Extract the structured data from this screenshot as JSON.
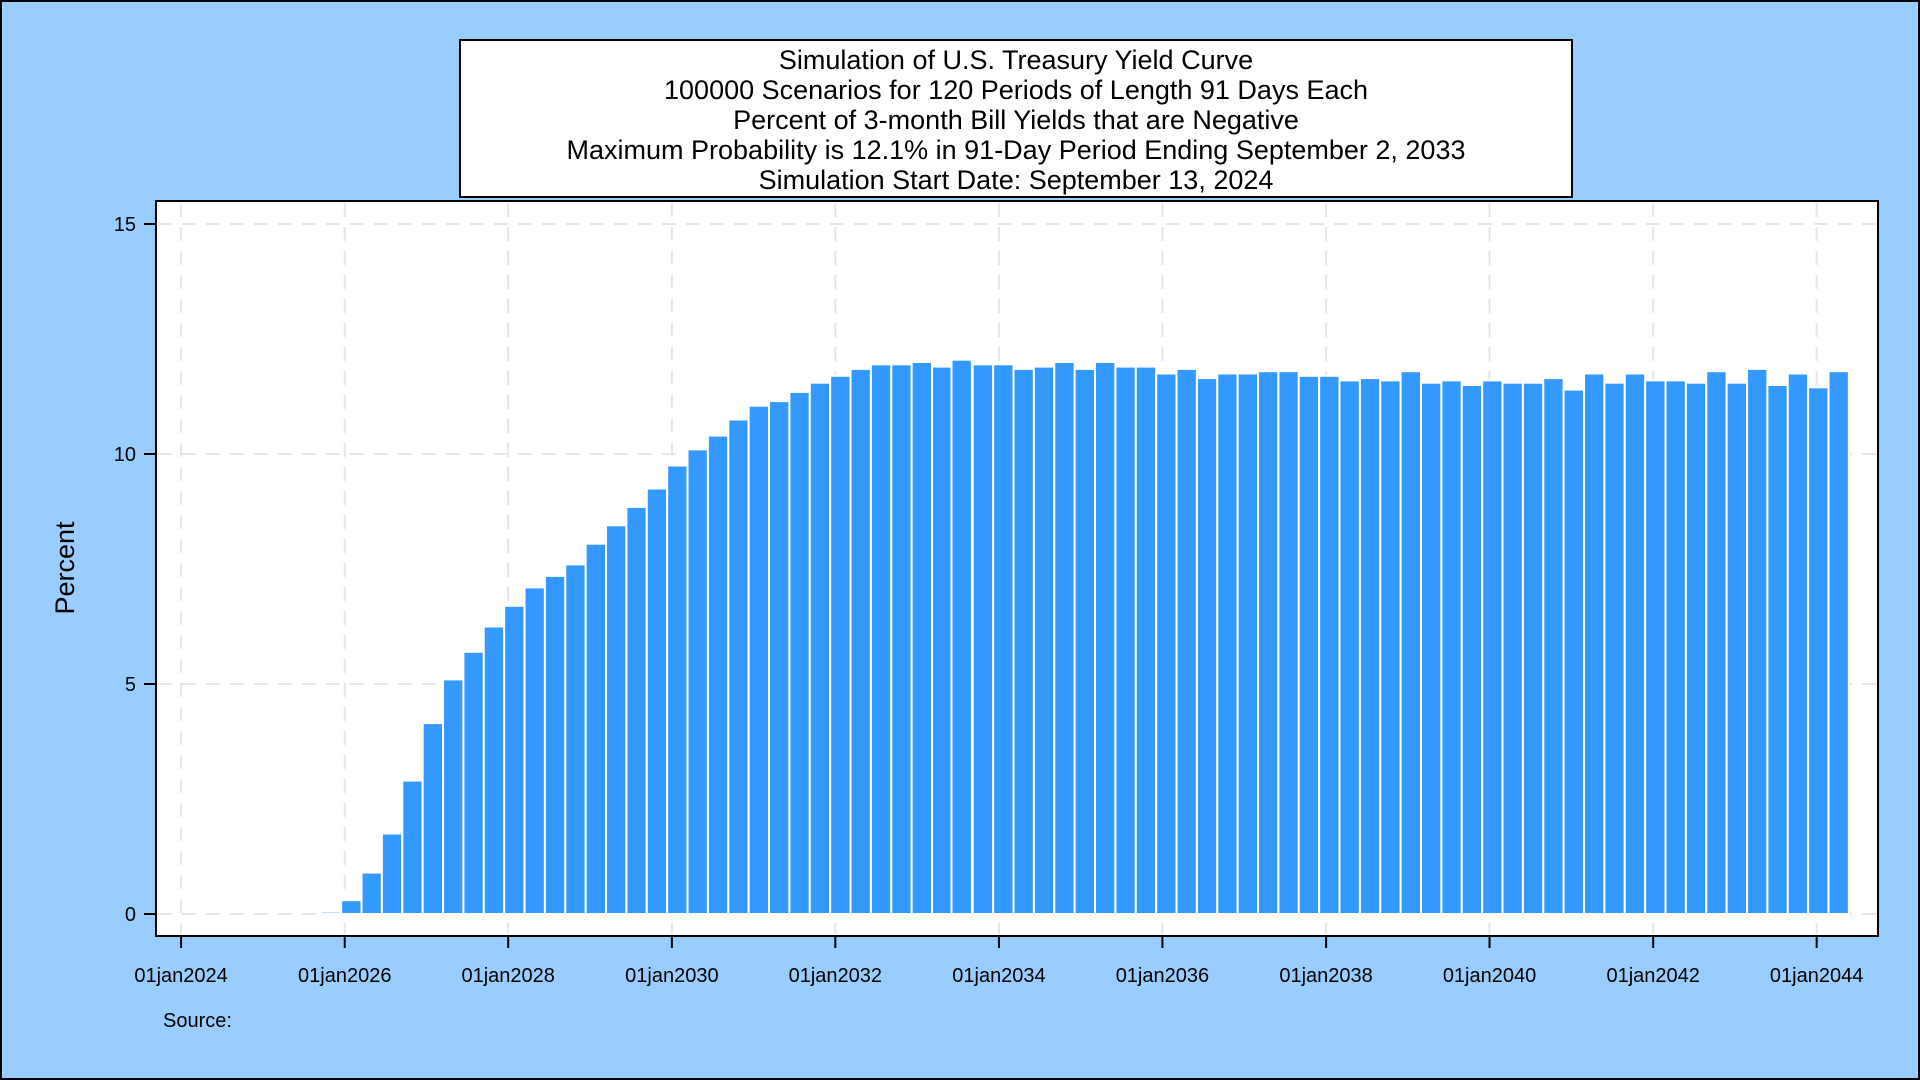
{
  "chart_data": {
    "type": "bar",
    "title_lines": [
      "Simulation of U.S. Treasury Yield Curve",
      "100000 Scenarios for 120 Periods of Length 91 Days Each",
      "Percent of 3-month Bill Yields that are Negative",
      "Maximum Probability is 12.1% in 91-Day Period Ending September 2, 2033",
      "Simulation Start Date: September 13, 2024"
    ],
    "ylabel": "Percent",
    "xlabel": "",
    "ylim": [
      0,
      15
    ],
    "yticks": [
      0,
      5,
      10,
      15
    ],
    "x_axis_range": [
      "2023-09-11",
      "2044-10-01"
    ],
    "xticks": [
      {
        "date": "2024-01-01",
        "label": "01jan2024"
      },
      {
        "date": "2026-01-01",
        "label": "01jan2026"
      },
      {
        "date": "2028-01-01",
        "label": "01jan2028"
      },
      {
        "date": "2030-01-01",
        "label": "01jan2030"
      },
      {
        "date": "2032-01-01",
        "label": "01jan2032"
      },
      {
        "date": "2034-01-01",
        "label": "01jan2034"
      },
      {
        "date": "2036-01-01",
        "label": "01jan2036"
      },
      {
        "date": "2038-01-01",
        "label": "01jan2038"
      },
      {
        "date": "2040-01-01",
        "label": "01jan2040"
      },
      {
        "date": "2042-01-01",
        "label": "01jan2042"
      },
      {
        "date": "2044-01-01",
        "label": "01jan2044"
      }
    ],
    "grid": true,
    "bar_color": "#3399ff",
    "bar_outline": "#ffffff",
    "bars": [
      {
        "period_end": "2025-12-16",
        "value": 0.05
      },
      {
        "period_end": "2026-03-17",
        "value": 0.3
      },
      {
        "period_end": "2026-06-16",
        "value": 0.9
      },
      {
        "period_end": "2026-09-15",
        "value": 1.75
      },
      {
        "period_end": "2026-12-15",
        "value": 2.9
      },
      {
        "period_end": "2027-03-16",
        "value": 4.15
      },
      {
        "period_end": "2027-06-15",
        "value": 5.1
      },
      {
        "period_end": "2027-09-14",
        "value": 5.7
      },
      {
        "period_end": "2027-12-14",
        "value": 6.25
      },
      {
        "period_end": "2028-03-14",
        "value": 6.7
      },
      {
        "period_end": "2028-06-13",
        "value": 7.1
      },
      {
        "period_end": "2028-09-12",
        "value": 7.35
      },
      {
        "period_end": "2028-12-12",
        "value": 7.6
      },
      {
        "period_end": "2029-03-13",
        "value": 8.05
      },
      {
        "period_end": "2029-06-12",
        "value": 8.45
      },
      {
        "period_end": "2029-09-11",
        "value": 8.85
      },
      {
        "period_end": "2029-12-11",
        "value": 9.25
      },
      {
        "period_end": "2030-03-12",
        "value": 9.75
      },
      {
        "period_end": "2030-06-11",
        "value": 10.1
      },
      {
        "period_end": "2030-09-10",
        "value": 10.4
      },
      {
        "period_end": "2030-12-10",
        "value": 10.75
      },
      {
        "period_end": "2031-03-11",
        "value": 11.05
      },
      {
        "period_end": "2031-06-10",
        "value": 11.15
      },
      {
        "period_end": "2031-09-09",
        "value": 11.35
      },
      {
        "period_end": "2031-12-09",
        "value": 11.55
      },
      {
        "period_end": "2032-03-09",
        "value": 11.7
      },
      {
        "period_end": "2032-06-08",
        "value": 11.85
      },
      {
        "period_end": "2032-09-07",
        "value": 11.95
      },
      {
        "period_end": "2032-12-07",
        "value": 11.95
      },
      {
        "period_end": "2033-03-08",
        "value": 12.0
      },
      {
        "period_end": "2033-06-07",
        "value": 11.9
      },
      {
        "period_end": "2033-09-02",
        "value": 12.05
      },
      {
        "period_end": "2033-12-06",
        "value": 11.95
      },
      {
        "period_end": "2034-03-07",
        "value": 11.95
      },
      {
        "period_end": "2034-06-06",
        "value": 11.85
      },
      {
        "period_end": "2034-09-05",
        "value": 11.9
      },
      {
        "period_end": "2034-12-05",
        "value": 12.0
      },
      {
        "period_end": "2035-03-06",
        "value": 11.85
      },
      {
        "period_end": "2035-06-05",
        "value": 12.0
      },
      {
        "period_end": "2035-09-04",
        "value": 11.9
      },
      {
        "period_end": "2035-12-04",
        "value": 11.9
      },
      {
        "period_end": "2036-03-04",
        "value": 11.75
      },
      {
        "period_end": "2036-06-03",
        "value": 11.85
      },
      {
        "period_end": "2036-09-02",
        "value": 11.65
      },
      {
        "period_end": "2036-12-02",
        "value": 11.75
      },
      {
        "period_end": "2037-03-03",
        "value": 11.75
      },
      {
        "period_end": "2037-06-02",
        "value": 11.8
      },
      {
        "period_end": "2037-09-01",
        "value": 11.8
      },
      {
        "period_end": "2037-12-01",
        "value": 11.7
      },
      {
        "period_end": "2038-03-02",
        "value": 11.7
      },
      {
        "period_end": "2038-06-01",
        "value": 11.6
      },
      {
        "period_end": "2038-08-31",
        "value": 11.65
      },
      {
        "period_end": "2038-11-30",
        "value": 11.6
      },
      {
        "period_end": "2039-03-01",
        "value": 11.8
      },
      {
        "period_end": "2039-05-31",
        "value": 11.55
      },
      {
        "period_end": "2039-08-30",
        "value": 11.6
      },
      {
        "period_end": "2039-11-29",
        "value": 11.5
      },
      {
        "period_end": "2040-02-28",
        "value": 11.6
      },
      {
        "period_end": "2040-05-29",
        "value": 11.55
      },
      {
        "period_end": "2040-08-28",
        "value": 11.55
      },
      {
        "period_end": "2040-11-27",
        "value": 11.65
      },
      {
        "period_end": "2041-02-26",
        "value": 11.4
      },
      {
        "period_end": "2041-05-28",
        "value": 11.75
      },
      {
        "period_end": "2041-08-27",
        "value": 11.55
      },
      {
        "period_end": "2041-11-26",
        "value": 11.75
      },
      {
        "period_end": "2042-02-25",
        "value": 11.6
      },
      {
        "period_end": "2042-05-27",
        "value": 11.6
      },
      {
        "period_end": "2042-08-26",
        "value": 11.55
      },
      {
        "period_end": "2042-11-25",
        "value": 11.8
      },
      {
        "period_end": "2043-02-24",
        "value": 11.55
      },
      {
        "period_end": "2043-05-26",
        "value": 11.85
      },
      {
        "period_end": "2043-08-25",
        "value": 11.5
      },
      {
        "period_end": "2043-11-24",
        "value": 11.75
      },
      {
        "period_end": "2044-02-23",
        "value": 11.45
      },
      {
        "period_end": "2044-05-24",
        "value": 11.8
      }
    ]
  },
  "footer": {
    "source_label": "Source:"
  }
}
